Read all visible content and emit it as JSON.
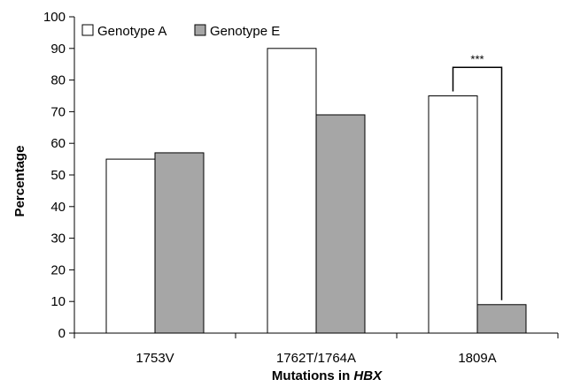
{
  "chart_data": {
    "type": "bar",
    "categories": [
      "1753V",
      "1762T/1764A",
      "1809A"
    ],
    "series": [
      {
        "name": "Genotype A",
        "values": [
          55,
          90,
          75
        ],
        "color": "#ffffff"
      },
      {
        "name": "Genotype E",
        "values": [
          57,
          69,
          9
        ],
        "color": "#a6a6a6"
      }
    ],
    "ylim": [
      0,
      100
    ],
    "yticks": [
      0,
      10,
      20,
      30,
      40,
      50,
      60,
      70,
      80,
      90,
      100
    ],
    "ylabel": "Percentage",
    "xlabel_prefix": "Mutations in ",
    "xlabel_italic": "HBX",
    "legend_position": "top-left",
    "grid": false,
    "annotation": {
      "text": "***",
      "category": "1809A"
    }
  }
}
